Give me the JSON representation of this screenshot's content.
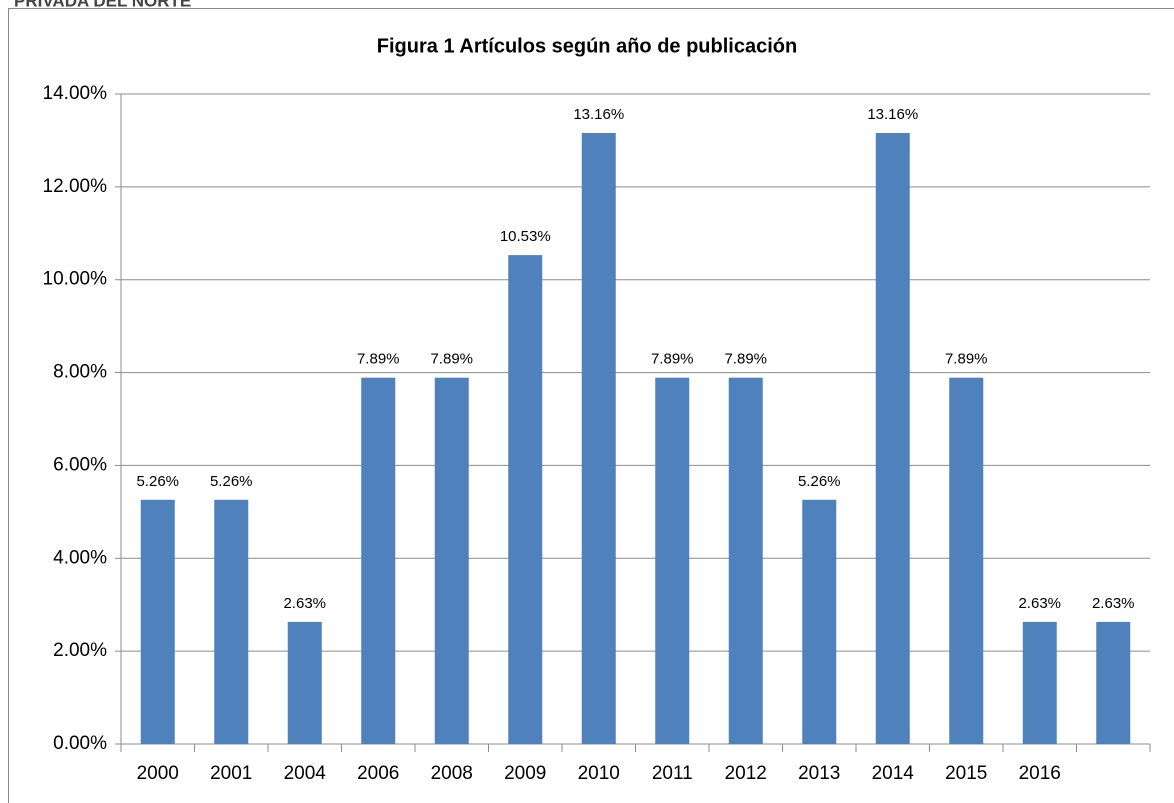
{
  "header": "PRIVADA DEL NORTE",
  "chart_data": {
    "type": "bar",
    "title": "Figura 1 Artículos según año de publicación",
    "categories": [
      "2000",
      "2001",
      "2004",
      "2006",
      "2008",
      "2009",
      "2010",
      "2011",
      "2012",
      "2013",
      "2014",
      "2015",
      "2016",
      null
    ],
    "values": [
      5.26,
      5.26,
      2.63,
      7.89,
      7.89,
      10.53,
      13.16,
      7.89,
      7.89,
      5.26,
      13.16,
      7.89,
      2.63,
      2.63
    ],
    "value_labels": [
      "5.26%",
      "5.26%",
      "2.63%",
      "7.89%",
      "7.89%",
      "10.53%",
      "13.16%",
      "7.89%",
      "7.89%",
      "5.26%",
      "13.16%",
      "7.89%",
      "2.63%",
      "2.63%"
    ],
    "color": "#4f81bd",
    "ylim": [
      0,
      14
    ],
    "yticks": [
      {
        "value": 0,
        "label": "0.00%"
      },
      {
        "value": 2,
        "label": "2.00%"
      },
      {
        "value": 4,
        "label": "4.00%"
      },
      {
        "value": 6,
        "label": "6.00%"
      },
      {
        "value": 8,
        "label": "8.00%"
      },
      {
        "value": 10,
        "label": "10.00%"
      },
      {
        "value": 12,
        "label": "12.00%"
      },
      {
        "value": 14,
        "label": "14.00%"
      }
    ],
    "grid": true
  }
}
